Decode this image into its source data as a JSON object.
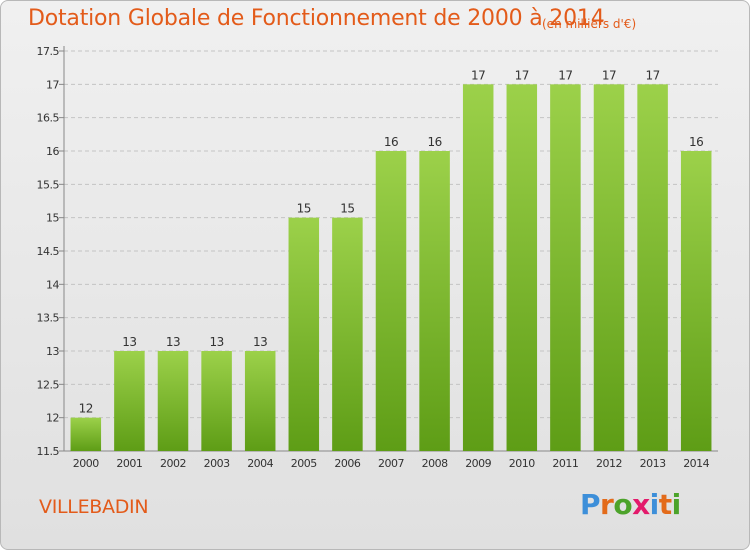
{
  "title": "Dotation Globale de Fonctionnement de 2000 à 2014",
  "subtitle": "(en milliers d'€)",
  "commune": "VILLEBADIN",
  "logo": {
    "text": "Proxiti",
    "letter_colors": [
      "#3d8fd9",
      "#e36b1a",
      "#4ca32a",
      "#e31a6b",
      "#3d8fd9",
      "#e36b1a",
      "#4ca32a"
    ]
  },
  "colors": {
    "bar_top": "#9cd14a",
    "bar_bottom": "#5e9d16",
    "grid": "#c4c4c4",
    "axis_text": "#333333",
    "title": "#e35b1a"
  },
  "chart_data": {
    "type": "bar",
    "categories": [
      "2000",
      "2001",
      "2002",
      "2003",
      "2004",
      "2005",
      "2006",
      "2007",
      "2008",
      "2009",
      "2010",
      "2011",
      "2012",
      "2013",
      "2014"
    ],
    "values": [
      12,
      13,
      13,
      13,
      13,
      15,
      15,
      16,
      16,
      17,
      17,
      17,
      17,
      17,
      16
    ],
    "data_labels": [
      "12",
      "13",
      "13",
      "13",
      "13",
      "15",
      "15",
      "16",
      "16",
      "17",
      "17",
      "17",
      "17",
      "17",
      "16"
    ],
    "yticks": [
      "11.5",
      "12",
      "12.5",
      "13",
      "13.5",
      "14",
      "14.5",
      "15",
      "15.5",
      "16",
      "16.5",
      "17",
      "17.5"
    ],
    "ylim": [
      11.5,
      17.5
    ],
    "grid": "horizontal"
  }
}
